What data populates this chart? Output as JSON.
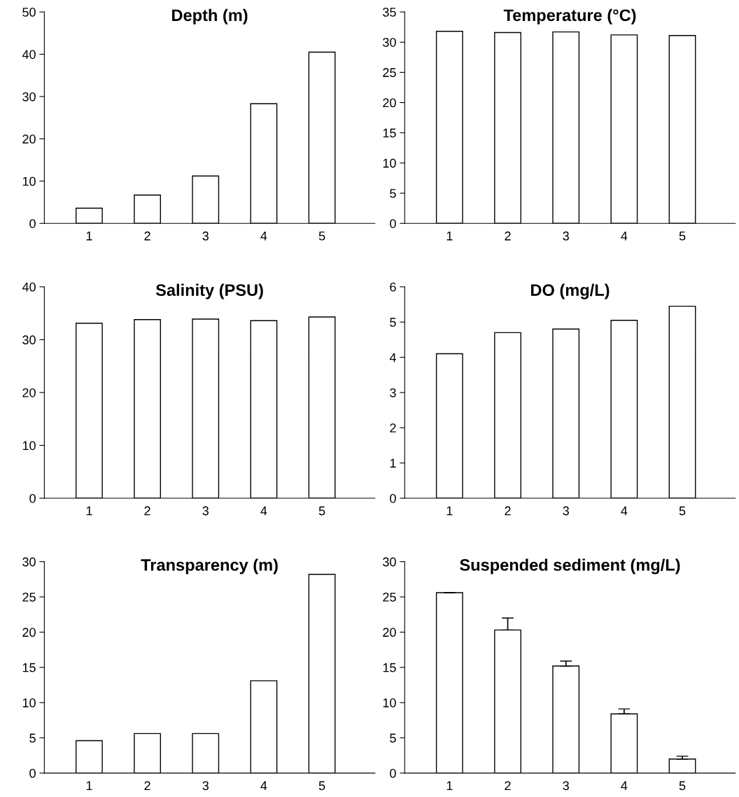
{
  "chart_data": [
    {
      "type": "bar",
      "title": "Depth (m)",
      "categories": [
        "1",
        "2",
        "3",
        "4",
        "5"
      ],
      "values": [
        3.6,
        6.7,
        11.2,
        28.3,
        40.5
      ],
      "color": "#ffffff",
      "ylim": [
        0,
        50
      ],
      "yticks": [
        0,
        10,
        20,
        30,
        40,
        50
      ],
      "grid": false,
      "legend": false
    },
    {
      "type": "bar",
      "title": "Temperature (°C)",
      "categories": [
        "1",
        "2",
        "3",
        "4",
        "5"
      ],
      "values": [
        31.8,
        31.6,
        31.7,
        31.2,
        31.1
      ],
      "color": "#ffffff",
      "ylim": [
        0,
        35
      ],
      "yticks": [
        0,
        5,
        10,
        15,
        20,
        25,
        30,
        35
      ],
      "grid": false,
      "legend": false
    },
    {
      "type": "bar",
      "title": "Salinity (PSU)",
      "categories": [
        "1",
        "2",
        "3",
        "4",
        "5"
      ],
      "values": [
        33.1,
        33.8,
        33.9,
        33.6,
        34.3
      ],
      "color": "#ffffff",
      "ylim": [
        0,
        40
      ],
      "yticks": [
        0,
        10,
        20,
        30,
        40
      ],
      "grid": false,
      "legend": false
    },
    {
      "type": "bar",
      "title": "DO (mg/L)",
      "categories": [
        "1",
        "2",
        "3",
        "4",
        "5"
      ],
      "values": [
        4.1,
        4.7,
        4.8,
        5.05,
        5.45
      ],
      "color": "#ffffff",
      "ylim": [
        0,
        6
      ],
      "yticks": [
        0,
        1,
        2,
        3,
        4,
        5,
        6
      ],
      "grid": false,
      "legend": false
    },
    {
      "type": "bar",
      "title": "Transparency (m)",
      "categories": [
        "1",
        "2",
        "3",
        "4",
        "5"
      ],
      "values": [
        4.6,
        5.6,
        5.6,
        13.1,
        28.2
      ],
      "color": "#ffffff",
      "ylim": [
        0,
        30
      ],
      "yticks": [
        0,
        5,
        10,
        15,
        20,
        25,
        30
      ],
      "grid": false,
      "legend": false
    },
    {
      "type": "bar",
      "title": "Suspended sediment (mg/L)",
      "categories": [
        "1",
        "2",
        "3",
        "4",
        "5"
      ],
      "values": [
        25.6,
        20.3,
        15.2,
        8.4,
        2.0
      ],
      "errors": [
        null,
        1.7,
        0.7,
        0.7,
        0.4
      ],
      "color": "#ffffff",
      "ylim": [
        0,
        30
      ],
      "yticks": [
        0,
        5,
        10,
        15,
        20,
        25,
        30
      ],
      "grid": false,
      "legend": false
    }
  ]
}
